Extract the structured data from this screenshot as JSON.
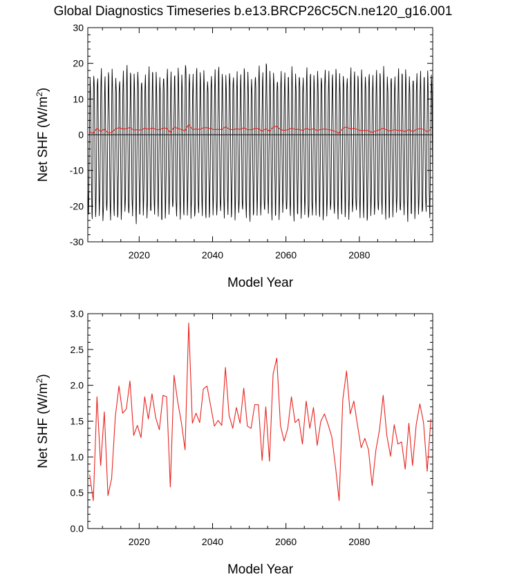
{
  "title": "Global Diagnostics Timeseries b.e13.BRCP26C5CN.ne120_g16.001",
  "colors": {
    "monthly": "#000000",
    "annual": "#e8211c",
    "axis": "#000000"
  },
  "chart_data": [
    {
      "type": "line",
      "xlabel": "Model Year",
      "ylabel_main": "Net SHF (W/m",
      "ylabel_sup": "2",
      "ylabel_close": ")",
      "xlim": [
        2006,
        2100
      ],
      "ylim": [
        -30,
        30
      ],
      "x_ticks": [
        2020,
        2040,
        2060,
        2080
      ],
      "y_ticks": [
        "-30",
        "-20",
        "-10",
        "0",
        "10",
        "20",
        "30"
      ],
      "zero_line": true,
      "series": [
        {
          "description": "monthly values, seasonal cycle between peaks and troughs each year",
          "color": "#000000",
          "x_start": 2006,
          "annual_peaks": [
            15.2,
            17.1,
            16.4,
            17.9,
            15.5,
            16.8,
            17.6,
            16.2,
            15.9,
            17.4,
            18.6,
            16.9,
            16.1,
            17.7,
            15.8,
            16.5,
            18.2,
            17.3,
            16.6,
            15.9,
            17.1,
            18.4,
            16.7,
            16.2,
            17.8,
            16.4,
            20.6,
            17.2,
            16.1,
            18.1,
            16.6,
            17.4,
            15.7,
            16.9,
            17.5,
            18.3,
            16.2,
            15.9,
            17.7,
            16.8,
            17.1,
            16.0,
            18.0,
            16.7,
            15.8,
            17.2,
            18.9,
            16.5,
            19.6,
            16.9,
            17.3,
            16.1,
            17.6,
            16.4,
            15.9,
            18.2,
            16.8,
            17.4,
            16.0,
            17.9,
            16.6,
            15.7,
            17.3,
            16.9,
            18.5,
            17.0,
            16.2,
            17.6,
            16.5,
            17.1,
            16.4,
            18.1,
            16.9,
            15.8,
            17.4,
            16.6,
            17.9,
            16.1,
            17.2,
            16.7,
            18.3,
            16.4,
            17.0,
            15.9,
            17.6,
            16.8,
            17.3,
            16.2,
            16.5,
            17.1,
            16.9,
            15.8,
            17.0,
            16.4
          ],
          "annual_troughs": [
            -21.5,
            -22.8,
            -22.3,
            -21.9,
            -24.6,
            -22.1,
            -23.4,
            -21.8,
            -22.6,
            -22.9,
            -21.7,
            -23.1,
            -22.4,
            -24.1,
            -22.0,
            -21.6,
            -23.3,
            -22.7,
            -22.2,
            -21.9,
            -23.6,
            -22.5,
            -22.0,
            -21.4,
            -23.0,
            -22.8,
            -22.1,
            -21.7,
            -22.9,
            -23.8,
            -22.3,
            -21.9,
            -22.6,
            -22.4,
            -21.8,
            -23.2,
            -22.0,
            -22.7,
            -21.6,
            -22.5,
            -23.1,
            -22.2,
            -21.9,
            -22.8,
            -23.4,
            -22.1,
            -21.7,
            -22.6,
            -22.3,
            -21.8,
            -23.0,
            -22.4,
            -22.9,
            -21.6,
            -22.2,
            -22.7,
            -23.3,
            -21.9,
            -22.5,
            -22.0,
            -24.3,
            -22.8,
            -21.7,
            -22.4,
            -23.1,
            -22.2,
            -21.8,
            -22.6,
            -22.9,
            -21.5,
            -22.3,
            -23.0,
            -22.1,
            -21.9,
            -22.7,
            -22.4,
            -23.5,
            -21.8,
            -22.6,
            -22.2,
            -21.9,
            -22.8,
            -23.0,
            -22.1,
            -21.7,
            -22.5,
            -22.3,
            -23.4,
            -21.9,
            -22.6,
            -22.0,
            -22.8,
            -21.6,
            -22.4
          ]
        },
        {
          "description": "annual mean",
          "color": "#e8211c",
          "x_start": 2006,
          "values": [
            0.75,
            0.39,
            1.84,
            0.88,
            1.63,
            0.46,
            0.7,
            1.56,
            1.99,
            1.61,
            1.67,
            2.06,
            1.3,
            1.44,
            1.27,
            1.84,
            1.53,
            1.88,
            1.55,
            1.38,
            1.86,
            1.84,
            0.58,
            2.14,
            1.77,
            1.48,
            1.1,
            2.87,
            1.47,
            1.61,
            1.48,
            1.95,
            1.99,
            1.71,
            1.43,
            1.51,
            1.44,
            2.25,
            1.58,
            1.4,
            1.69,
            1.47,
            1.96,
            1.43,
            1.4,
            1.73,
            1.73,
            0.95,
            1.7,
            0.94,
            2.16,
            2.38,
            1.44,
            1.22,
            1.4,
            1.84,
            1.48,
            1.53,
            1.18,
            1.78,
            1.4,
            1.69,
            1.16,
            1.5,
            1.6,
            1.45,
            1.28,
            0.87,
            0.39,
            1.8,
            2.2,
            1.6,
            1.78,
            1.44,
            1.13,
            1.26,
            1.1,
            0.6,
            1.09,
            1.38,
            1.86,
            1.3,
            1.01,
            1.45,
            1.18,
            1.21,
            0.83,
            1.47,
            0.88,
            1.45,
            1.74,
            1.48,
            0.8,
            1.53
          ]
        }
      ]
    },
    {
      "type": "line",
      "xlabel": "Model Year",
      "ylabel_main": "Net SHF (W/m",
      "ylabel_sup": "2",
      "ylabel_close": ")",
      "xlim": [
        2006,
        2100
      ],
      "ylim": [
        0,
        3
      ],
      "x_ticks": [
        2020,
        2040,
        2060,
        2080
      ],
      "y_ticks": [
        "0.0",
        "0.5",
        "1.0",
        "1.5",
        "2.0",
        "2.5",
        "3.0"
      ],
      "series": [
        {
          "description": "annual mean",
          "color": "#e8211c",
          "x_start": 2006,
          "values": [
            0.75,
            0.39,
            1.84,
            0.88,
            1.63,
            0.46,
            0.7,
            1.56,
            1.99,
            1.61,
            1.67,
            2.06,
            1.3,
            1.44,
            1.27,
            1.84,
            1.53,
            1.88,
            1.55,
            1.38,
            1.86,
            1.84,
            0.58,
            2.14,
            1.77,
            1.48,
            1.1,
            2.87,
            1.47,
            1.61,
            1.48,
            1.95,
            1.99,
            1.71,
            1.43,
            1.51,
            1.44,
            2.25,
            1.58,
            1.4,
            1.69,
            1.47,
            1.96,
            1.43,
            1.4,
            1.73,
            1.73,
            0.95,
            1.7,
            0.94,
            2.16,
            2.38,
            1.44,
            1.22,
            1.4,
            1.84,
            1.48,
            1.53,
            1.18,
            1.78,
            1.4,
            1.69,
            1.16,
            1.5,
            1.6,
            1.45,
            1.28,
            0.87,
            0.39,
            1.8,
            2.2,
            1.6,
            1.78,
            1.44,
            1.13,
            1.26,
            1.1,
            0.6,
            1.09,
            1.38,
            1.86,
            1.3,
            1.01,
            1.45,
            1.18,
            1.21,
            0.83,
            1.47,
            0.88,
            1.45,
            1.74,
            1.48,
            0.8,
            1.53
          ]
        }
      ]
    }
  ]
}
